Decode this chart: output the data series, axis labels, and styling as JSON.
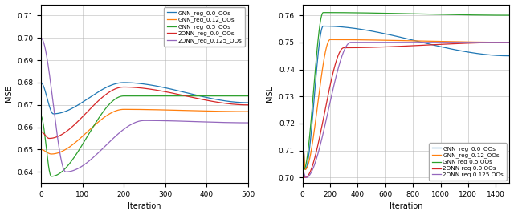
{
  "left": {
    "ylabel": "MSE",
    "xlabel": "Iteration",
    "xlim": [
      0,
      500
    ],
    "ylim": [
      0.635,
      0.715
    ],
    "yticks": [
      0.64,
      0.65,
      0.66,
      0.67,
      0.68,
      0.69,
      0.7,
      0.71
    ],
    "xticks": [
      0,
      100,
      200,
      300,
      400,
      500
    ],
    "series": [
      {
        "label": "GNN_reg_0.0_OOs",
        "color": "#1f77b4",
        "type": "mse_blue"
      },
      {
        "label": "GNN_reg_0.12_OOs",
        "color": "#ff7f0e",
        "type": "mse_orange"
      },
      {
        "label": "GNN_reg_0.5_OOs",
        "color": "#2ca02c",
        "type": "mse_green"
      },
      {
        "label": "2ONN_reg_0.0_OOs",
        "color": "#d62728",
        "type": "mse_red"
      },
      {
        "label": "2ONN_reg_0.125_OOs",
        "color": "#9467bd",
        "type": "mse_purple"
      }
    ]
  },
  "right": {
    "ylabel": "MSL",
    "xlabel": "Iteration",
    "xlim": [
      0,
      1500
    ],
    "ylim": [
      0.698,
      0.764
    ],
    "yticks": [
      0.7,
      0.71,
      0.72,
      0.73,
      0.74,
      0.75,
      0.76
    ],
    "xticks": [
      0,
      200,
      400,
      600,
      800,
      1000,
      1200,
      1400
    ],
    "series": [
      {
        "label": "GNN_reg_0.0_OOs",
        "color": "#1f77b4",
        "type": "msl_blue"
      },
      {
        "label": "GNN_reg_0.12_OOs",
        "color": "#ff7f0e",
        "type": "msl_orange"
      },
      {
        "label": "GNN req 0.5 OOs",
        "color": "#2ca02c",
        "type": "msl_green"
      },
      {
        "label": "2ONN req 0.0 OOs",
        "color": "#d62728",
        "type": "msl_red"
      },
      {
        "label": "2ONN req 0.125 OOs",
        "color": "#9467bd",
        "type": "msl_purple"
      }
    ]
  },
  "figsize": [
    6.4,
    2.68
  ],
  "dpi": 100
}
